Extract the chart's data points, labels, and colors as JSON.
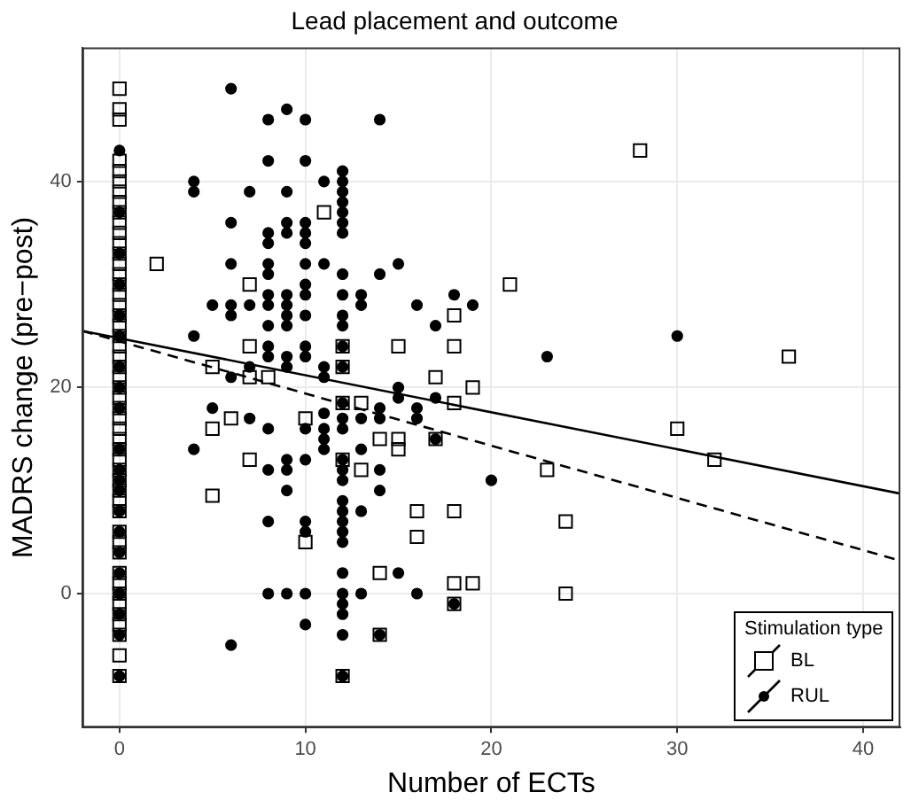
{
  "chart_data": {
    "type": "scatter",
    "title": "Lead placement and outcome",
    "xlabel": "Number of ECTs",
    "ylabel": "MADRS change (pre−post)",
    "legend_title": "Stimulation type",
    "legend": "bottom right",
    "grid": true,
    "xlim": [
      -2,
      42
    ],
    "xticks": [
      0,
      10,
      20,
      30,
      40
    ],
    "ylim": [
      -13,
      53
    ],
    "yticks": [
      0,
      20,
      40
    ],
    "series": [
      {
        "name": "BL",
        "type": "scatter",
        "marker": "square",
        "color": "#000000",
        "x": [
          0,
          0,
          0,
          0,
          0,
          0,
          0,
          0,
          0,
          0,
          0,
          0,
          0,
          0,
          0,
          0,
          0,
          0,
          0,
          0,
          0,
          0,
          0,
          0,
          0,
          0,
          0,
          0,
          0,
          0,
          0,
          0,
          0,
          0,
          0,
          0,
          0,
          0,
          0,
          0,
          0,
          0,
          0,
          0,
          0,
          0,
          0,
          0,
          0,
          0,
          2,
          7,
          7,
          11,
          12,
          15,
          18,
          18,
          5,
          7,
          8,
          6,
          5,
          10,
          12,
          13,
          12,
          13,
          7,
          5,
          10,
          14,
          15,
          15,
          16,
          16,
          14,
          18,
          18,
          19,
          17,
          18,
          19,
          12,
          14,
          18,
          17,
          12,
          28,
          21,
          36,
          30,
          32,
          23,
          24,
          24
        ],
        "values": [
          49,
          47,
          46,
          42,
          41,
          40,
          39,
          38,
          37,
          36,
          35,
          34,
          33,
          32,
          31,
          30,
          29,
          28,
          27,
          26,
          25,
          24,
          23,
          22,
          21,
          20,
          19,
          18,
          17,
          16,
          15,
          14,
          13,
          12,
          11,
          10,
          9,
          8,
          6,
          5,
          4,
          2,
          1,
          0,
          -1,
          -2,
          -3,
          -4,
          -6,
          -8,
          32,
          30,
          24,
          37,
          24,
          24,
          24,
          27,
          22,
          21,
          21,
          17,
          16,
          17,
          13,
          12,
          18.5,
          18.5,
          13,
          9.5,
          5,
          15,
          15,
          14,
          8,
          5.5,
          2,
          8,
          1,
          1,
          21,
          18.5,
          20,
          -8,
          -4,
          -1,
          15,
          22,
          43,
          30,
          23,
          16,
          13,
          12,
          7,
          0
        ]
      },
      {
        "name": "RUL",
        "type": "scatter",
        "marker": "circle",
        "color": "#000000",
        "x": [
          0,
          0,
          0,
          0,
          0,
          0,
          0,
          0,
          0,
          0,
          0,
          0,
          0,
          0,
          0,
          0,
          0,
          0,
          0,
          0,
          0,
          4,
          4,
          4,
          4,
          5,
          5,
          6,
          6,
          6,
          6,
          6,
          6,
          6,
          7,
          7,
          7,
          7,
          8,
          8,
          8,
          8,
          8,
          8,
          8,
          8,
          8,
          8,
          8,
          8,
          8,
          8,
          8,
          9,
          9,
          9,
          9,
          9,
          9,
          9,
          9,
          9,
          9,
          9,
          9,
          9,
          9,
          10,
          10,
          10,
          10,
          10,
          10,
          10,
          10,
          10,
          10,
          10,
          10,
          10,
          10,
          10,
          10,
          10,
          11,
          11,
          11,
          11,
          11,
          11,
          11,
          11,
          12,
          12,
          12,
          12,
          12,
          12,
          12,
          12,
          12,
          12,
          12,
          12,
          12,
          12,
          12,
          12,
          12,
          12,
          12,
          12,
          12,
          12,
          12,
          12,
          12,
          12,
          12,
          12,
          12,
          12,
          13,
          13,
          13,
          13,
          13,
          13,
          14,
          14,
          14,
          14,
          14,
          14,
          14,
          15,
          15,
          15,
          15,
          16,
          16,
          16,
          16,
          17,
          17,
          17,
          18,
          18,
          19,
          20,
          23,
          30
        ],
        "values": [
          43,
          37,
          33,
          30,
          27,
          25,
          22,
          20,
          18,
          14,
          12,
          11,
          10,
          8,
          6,
          4,
          2,
          0,
          -2,
          -4,
          -8,
          40,
          39,
          25,
          14,
          28,
          18,
          49,
          36,
          32,
          28,
          27,
          21,
          -5,
          39,
          28,
          22,
          17,
          46,
          42,
          35,
          34,
          32,
          31,
          29,
          28,
          26,
          24,
          23,
          16,
          12,
          7,
          0,
          47,
          39,
          36,
          35,
          29,
          28,
          27,
          26,
          23,
          22,
          13,
          12,
          10,
          0,
          46,
          42,
          36,
          35,
          34,
          32,
          30,
          29,
          27,
          24,
          23,
          16,
          13,
          7,
          6,
          0,
          -3,
          40,
          32,
          22,
          21,
          17.5,
          16,
          15,
          14,
          41,
          40,
          39,
          38,
          37,
          36,
          35,
          31,
          29,
          27,
          26,
          24,
          22,
          18.5,
          17,
          16,
          13,
          12,
          11,
          9,
          8,
          7,
          6,
          5,
          2,
          0,
          -1,
          -2,
          -4,
          -8,
          29,
          28,
          17,
          14,
          8,
          0,
          46,
          31,
          18,
          17,
          12,
          10,
          -4,
          32,
          20,
          19,
          2,
          28,
          18,
          17,
          0,
          26,
          19,
          15,
          29,
          -1,
          28,
          11,
          23,
          25
        ]
      },
      {
        "type": "line",
        "line_style": "dashed",
        "color": "#000000",
        "x": [
          -2,
          42
        ],
        "values": [
          25.5,
          3.2
        ]
      },
      {
        "type": "line",
        "line_style": "solid",
        "color": "#000000",
        "x": [
          -2,
          42
        ],
        "values": [
          25.5,
          9.7
        ]
      }
    ]
  }
}
